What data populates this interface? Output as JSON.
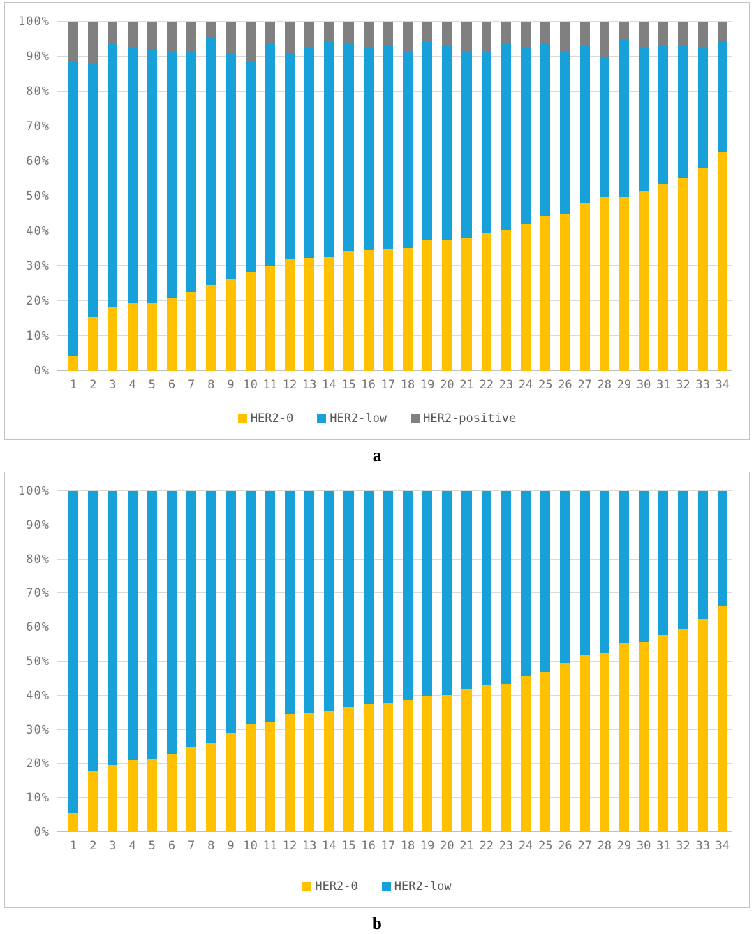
{
  "figure": {
    "background": "#ffffff",
    "grid_color": "#d9d9d9",
    "axis_text_color": "#757575"
  },
  "chart_data": [
    {
      "type": "bar",
      "subtype": "stacked-100",
      "panel_label": "a",
      "title": "",
      "xlabel": "",
      "ylabel": "",
      "ylim": [
        0,
        100
      ],
      "grid": true,
      "legend_position": "bottom",
      "y_tick_labels": [
        "0%",
        "10%",
        "20%",
        "30%",
        "40%",
        "50%",
        "60%",
        "70%",
        "80%",
        "90%",
        "100%"
      ],
      "categories": [
        "1",
        "2",
        "3",
        "4",
        "5",
        "6",
        "7",
        "8",
        "9",
        "10",
        "11",
        "12",
        "13",
        "14",
        "15",
        "16",
        "17",
        "18",
        "19",
        "20",
        "21",
        "22",
        "23",
        "24",
        "25",
        "26",
        "27",
        "28",
        "29",
        "30",
        "31",
        "32",
        "33",
        "34"
      ],
      "series": [
        {
          "name": "HER2-0",
          "color": "#FFC000",
          "values": [
            4.5,
            15.5,
            18.3,
            19.4,
            19.5,
            21.0,
            22.6,
            24.7,
            26.4,
            28.3,
            30.0,
            32.0,
            32.4,
            32.7,
            34.2,
            34.7,
            35.0,
            35.3,
            37.6,
            37.7,
            38.2,
            39.6,
            40.5,
            42.3,
            44.5,
            45.1,
            48.2,
            49.8,
            49.8,
            51.6,
            53.7,
            55.3,
            58.0,
            62.9
          ]
        },
        {
          "name": "HER2-low",
          "color": "#18A0D8",
          "values": [
            84.3,
            72.5,
            75.8,
            73.4,
            72.5,
            70.4,
            68.9,
            70.9,
            64.2,
            60.5,
            63.8,
            59.0,
            60.5,
            61.5,
            59.6,
            57.8,
            58.2,
            56.2,
            56.6,
            55.8,
            53.3,
            51.6,
            53.1,
            50.3,
            49.5,
            46.1,
            45.3,
            40.2,
            45.2,
            40.9,
            39.3,
            37.9,
            34.7,
            31.5
          ]
        },
        {
          "name": "HER2-positive",
          "color": "#808080",
          "values": [
            11.2,
            12.0,
            5.9,
            7.2,
            8.0,
            8.6,
            8.5,
            4.4,
            9.4,
            11.2,
            6.2,
            9.0,
            7.1,
            5.8,
            6.2,
            7.5,
            6.8,
            8.5,
            5.8,
            6.5,
            8.5,
            8.8,
            6.4,
            7.4,
            6.0,
            8.8,
            6.5,
            10.0,
            5.0,
            7.5,
            7.0,
            6.8,
            7.3,
            5.6
          ]
        }
      ]
    },
    {
      "type": "bar",
      "subtype": "stacked-100",
      "panel_label": "b",
      "title": "",
      "xlabel": "",
      "ylabel": "",
      "ylim": [
        0,
        100
      ],
      "grid": true,
      "legend_position": "bottom",
      "y_tick_labels": [
        "0%",
        "10%",
        "20%",
        "30%",
        "40%",
        "50%",
        "60%",
        "70%",
        "80%",
        "90%",
        "100%"
      ],
      "categories": [
        "1",
        "2",
        "3",
        "4",
        "5",
        "6",
        "7",
        "8",
        "9",
        "10",
        "11",
        "12",
        "13",
        "14",
        "15",
        "16",
        "17",
        "18",
        "19",
        "20",
        "21",
        "22",
        "23",
        "24",
        "25",
        "26",
        "27",
        "28",
        "29",
        "30",
        "31",
        "32",
        "33",
        "34"
      ],
      "series": [
        {
          "name": "HER2-0",
          "color": "#FFC000",
          "values": [
            5.5,
            17.8,
            19.6,
            21.1,
            21.3,
            23.0,
            24.7,
            26.1,
            29.2,
            31.5,
            32.2,
            34.7,
            34.9,
            35.5,
            36.7,
            37.5,
            37.7,
            38.8,
            39.8,
            40.1,
            41.9,
            43.3,
            43.5,
            45.9,
            47.0,
            49.6,
            51.8,
            52.4,
            55.5,
            55.7,
            57.8,
            59.4,
            62.5,
            66.3
          ]
        },
        {
          "name": "HER2-low",
          "color": "#18A0D8",
          "values": [
            94.5,
            82.2,
            80.4,
            78.9,
            78.7,
            77.0,
            75.3,
            73.9,
            70.8,
            68.5,
            67.8,
            65.3,
            65.1,
            64.5,
            63.3,
            62.5,
            62.3,
            61.2,
            60.2,
            59.9,
            58.1,
            56.7,
            56.5,
            54.1,
            53.0,
            50.4,
            48.2,
            47.6,
            44.5,
            44.3,
            42.2,
            40.6,
            37.5,
            33.7
          ]
        }
      ]
    }
  ]
}
